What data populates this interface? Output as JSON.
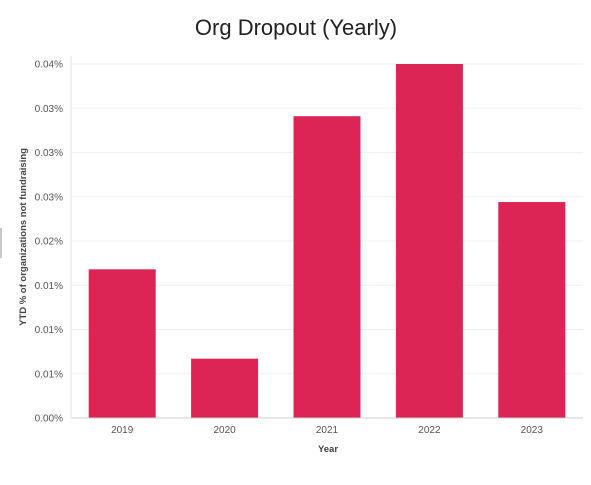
{
  "chart_data": {
    "type": "bar",
    "title": "Org Dropout (Yearly)",
    "xlabel": "Year",
    "ylabel": "YTD % of organizations not fundraising",
    "categories": [
      "2019",
      "2020",
      "2021",
      "2022",
      "2023"
    ],
    "series": [
      {
        "values": [
          0.0168,
          0.0067,
          0.0341,
          0.04,
          0.0244
        ]
      }
    ],
    "ylim": [
      0,
      0.04
    ],
    "yticks": [
      0,
      0.005,
      0.01,
      0.015,
      0.02,
      0.025,
      0.03,
      0.035,
      0.04
    ],
    "ytick_labels": [
      "0.00%",
      "0.01%",
      "0.01%",
      "0.01%",
      "0.02%",
      "0.03%",
      "0.03%",
      "0.03%",
      "0.04%"
    ],
    "bar_color": "#dc2455",
    "grid": true,
    "legend": "none"
  }
}
